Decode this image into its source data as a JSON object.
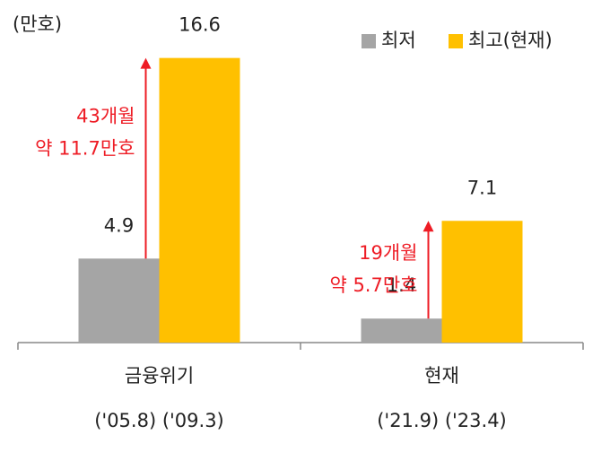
{
  "chart_data": {
    "type": "bar",
    "unit_label": "(만호)",
    "categories": [
      "금융위기",
      "현재"
    ],
    "category_sublabels": [
      "('05.8) ('09.3)",
      "('21.9) ('23.4)"
    ],
    "series": [
      {
        "name": "최저",
        "color": "#a5a5a5",
        "values": [
          4.9,
          1.4
        ]
      },
      {
        "name": "최고(현재)",
        "color": "#ffc000",
        "values": [
          16.6,
          7.1
        ]
      }
    ],
    "ylim": [
      0,
      17
    ],
    "annotations": [
      [
        "43개월",
        "약 11.7만호"
      ],
      [
        "19개월",
        "약 5.7만호"
      ]
    ],
    "annotation_color": "#ee1c25",
    "legend": "top-right"
  }
}
